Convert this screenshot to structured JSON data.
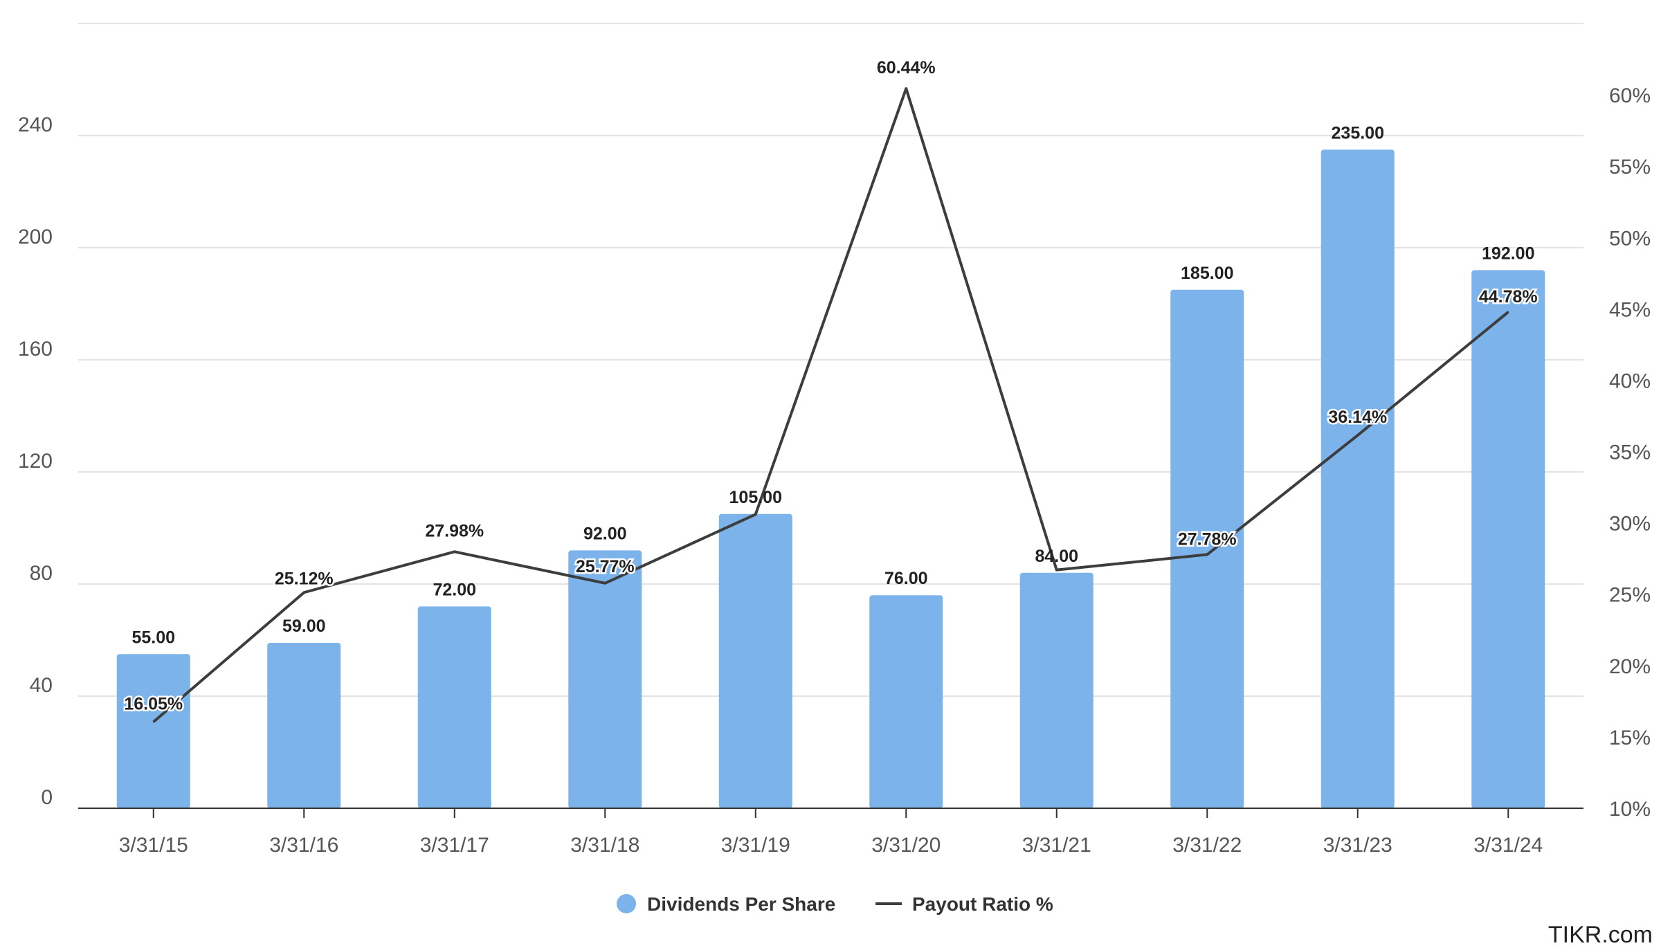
{
  "chart_data": {
    "type": "bar",
    "categories": [
      "3/31/15",
      "3/31/16",
      "3/31/17",
      "3/31/18",
      "3/31/19",
      "3/31/20",
      "3/31/21",
      "3/31/22",
      "3/31/23",
      "3/31/24"
    ],
    "series": [
      {
        "name": "Dividends Per Share",
        "type": "bar",
        "axis": "left",
        "color": "#7cb3ea",
        "values": [
          55.0,
          59.0,
          72.0,
          92.0,
          105.0,
          76.0,
          84.0,
          185.0,
          235.0,
          192.0
        ],
        "labels": [
          "55.00",
          "59.00",
          "72.00",
          "92.00",
          "105.00",
          "76.00",
          "84.00",
          "185.00",
          "235.00",
          "192.00"
        ]
      },
      {
        "name": "Payout Ratio %",
        "type": "line",
        "axis": "right",
        "color": "#3d3d3d",
        "values": [
          16.05,
          25.12,
          27.98,
          25.77,
          30.6,
          60.44,
          26.7,
          27.78,
          36.14,
          44.78
        ],
        "labels": [
          "16.05%",
          "25.12%",
          "27.98%",
          "25.77%",
          "",
          "60.44%",
          "",
          "27.78%",
          "36.14%",
          "44.78%"
        ]
      }
    ],
    "y_left": {
      "range": [
        0,
        280
      ],
      "ticks": [
        0,
        40,
        80,
        120,
        160,
        200,
        240
      ],
      "tick_labels": [
        "0",
        "40",
        "80",
        "120",
        "160",
        "200",
        "240"
      ]
    },
    "y_right": {
      "range": [
        10,
        65
      ],
      "ticks": [
        10,
        15,
        20,
        25,
        30,
        35,
        40,
        45,
        50,
        55,
        60
      ],
      "tick_labels": [
        "10%",
        "15%",
        "20%",
        "25%",
        "30%",
        "35%",
        "40%",
        "45%",
        "50%",
        "55%",
        "60%"
      ]
    },
    "grid": true,
    "legend_position": "bottom-center",
    "title": "",
    "xlabel": "",
    "ylabel": ""
  },
  "legend": {
    "items": [
      {
        "label": "Dividends Per Share",
        "marker": "circle",
        "color": "#7cb3ea"
      },
      {
        "label": "Payout Ratio %",
        "marker": "line",
        "color": "#3d3d3d"
      }
    ]
  },
  "watermark": "TIKR.com"
}
